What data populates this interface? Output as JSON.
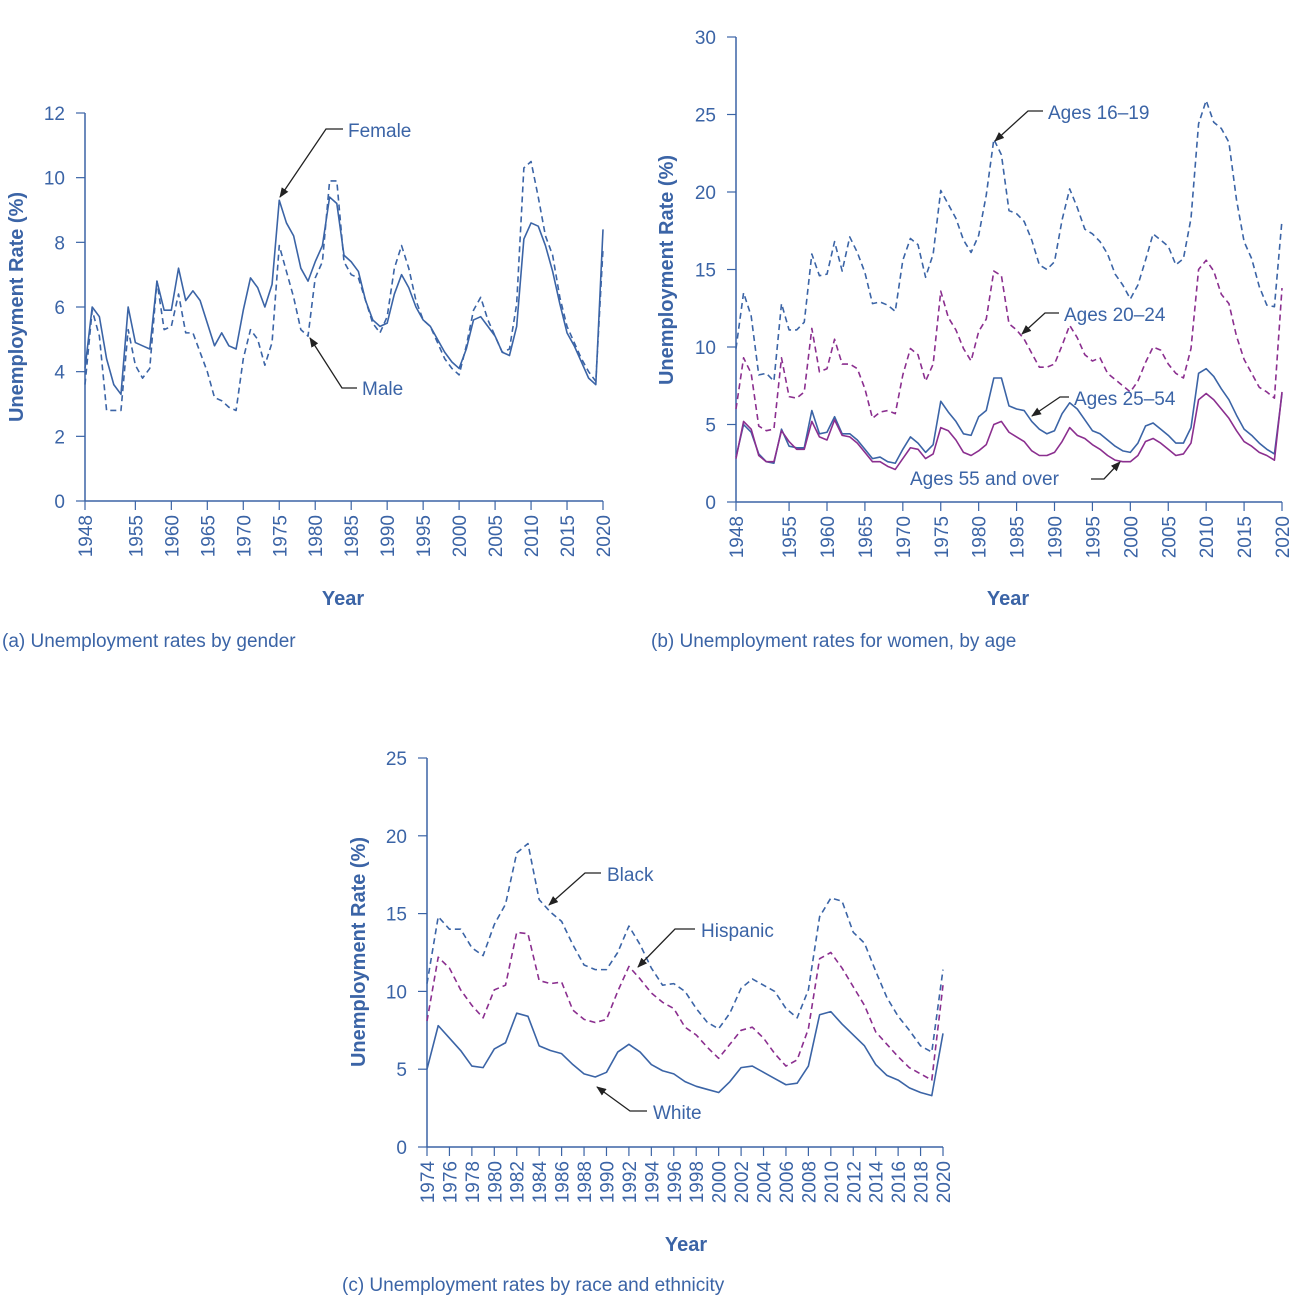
{
  "chart_data": [
    {
      "type": "line",
      "caption": "(a) Unemployment rates by gender",
      "xlabel": "Year",
      "ylabel": "Unemployment Rate (%)",
      "x": [
        1948,
        1949,
        1950,
        1951,
        1952,
        1953,
        1954,
        1955,
        1956,
        1957,
        1958,
        1959,
        1960,
        1961,
        1962,
        1963,
        1964,
        1965,
        1966,
        1967,
        1968,
        1969,
        1970,
        1971,
        1972,
        1973,
        1974,
        1975,
        1976,
        1977,
        1978,
        1979,
        1980,
        1981,
        1982,
        1983,
        1984,
        1985,
        1986,
        1987,
        1988,
        1989,
        1990,
        1991,
        1992,
        1993,
        1994,
        1995,
        1996,
        1997,
        1998,
        1999,
        2000,
        2001,
        2002,
        2003,
        2004,
        2005,
        2006,
        2007,
        2008,
        2009,
        2010,
        2011,
        2012,
        2013,
        2014,
        2015,
        2016,
        2017,
        2018,
        2019,
        2020
      ],
      "xlim": [
        1948,
        2020
      ],
      "xticks": [
        1948,
        1955,
        1960,
        1965,
        1970,
        1975,
        1980,
        1985,
        1990,
        1995,
        2000,
        2005,
        2010,
        2015,
        2020
      ],
      "ylim": [
        0,
        12
      ],
      "yticks": [
        0,
        2,
        4,
        6,
        8,
        10,
        12
      ],
      "series": [
        {
          "name": "Female",
          "color": "#3b64a6",
          "dashed": false,
          "values": [
            4.1,
            6.0,
            5.7,
            4.4,
            3.6,
            3.3,
            6.0,
            4.9,
            4.8,
            4.7,
            6.8,
            5.9,
            5.9,
            7.2,
            6.2,
            6.5,
            6.2,
            5.5,
            4.8,
            5.2,
            4.8,
            4.7,
            5.9,
            6.9,
            6.6,
            6.0,
            6.7,
            9.3,
            8.6,
            8.2,
            7.2,
            6.8,
            7.4,
            7.9,
            9.4,
            9.2,
            7.6,
            7.4,
            7.1,
            6.2,
            5.6,
            5.4,
            5.5,
            6.4,
            7.0,
            6.6,
            6.0,
            5.6,
            5.4,
            5.0,
            4.6,
            4.3,
            4.1,
            4.7,
            5.6,
            5.7,
            5.4,
            5.1,
            4.6,
            4.5,
            5.4,
            8.1,
            8.6,
            8.5,
            7.9,
            7.1,
            6.1,
            5.2,
            4.8,
            4.3,
            3.8,
            3.6,
            8.4
          ]
        },
        {
          "name": "Male",
          "color": "#3b64a6",
          "dashed": true,
          "values": [
            3.6,
            5.9,
            5.1,
            2.8,
            2.8,
            2.8,
            5.3,
            4.2,
            3.8,
            4.1,
            6.8,
            5.3,
            5.4,
            6.4,
            5.2,
            5.2,
            4.6,
            4.0,
            3.2,
            3.1,
            2.9,
            2.8,
            4.4,
            5.3,
            5.0,
            4.2,
            4.9,
            7.9,
            7.1,
            6.3,
            5.3,
            5.1,
            6.9,
            7.4,
            9.9,
            9.9,
            7.4,
            7.0,
            6.9,
            6.2,
            5.5,
            5.2,
            5.7,
            7.2,
            7.9,
            7.2,
            6.2,
            5.6,
            5.4,
            4.9,
            4.4,
            4.1,
            3.9,
            4.8,
            5.9,
            6.3,
            5.6,
            5.1,
            4.6,
            4.7,
            6.1,
            10.3,
            10.5,
            9.4,
            8.2,
            7.6,
            6.3,
            5.4,
            4.9,
            4.4,
            4.0,
            3.7,
            7.8
          ]
        }
      ]
    },
    {
      "type": "line",
      "caption": "(b) Unemployment rates for women, by age",
      "xlabel": "Year",
      "ylabel": "Unemployment Rate (%)",
      "x": [
        1948,
        1949,
        1950,
        1951,
        1952,
        1953,
        1954,
        1955,
        1956,
        1957,
        1958,
        1959,
        1960,
        1961,
        1962,
        1963,
        1964,
        1965,
        1966,
        1967,
        1968,
        1969,
        1970,
        1971,
        1972,
        1973,
        1974,
        1975,
        1976,
        1977,
        1978,
        1979,
        1980,
        1981,
        1982,
        1983,
        1984,
        1985,
        1986,
        1987,
        1988,
        1989,
        1990,
        1991,
        1992,
        1993,
        1994,
        1995,
        1996,
        1997,
        1998,
        1999,
        2000,
        2001,
        2002,
        2003,
        2004,
        2005,
        2006,
        2007,
        2008,
        2009,
        2010,
        2011,
        2012,
        2013,
        2014,
        2015,
        2016,
        2017,
        2018,
        2019,
        2020
      ],
      "xlim": [
        1948,
        2020
      ],
      "xticks": [
        1948,
        1955,
        1960,
        1965,
        1970,
        1975,
        1980,
        1985,
        1990,
        1995,
        2000,
        2005,
        2010,
        2015,
        2020
      ],
      "ylim": [
        0,
        30
      ],
      "yticks": [
        0,
        5,
        10,
        15,
        20,
        25,
        30
      ],
      "series": [
        {
          "name": "Ages 16–19",
          "color": "#3b64a6",
          "dashed": true,
          "values": [
            9.9,
            13.5,
            12.0,
            8.2,
            8.3,
            7.8,
            12.8,
            11.1,
            11.1,
            11.6,
            16.0,
            14.6,
            14.7,
            16.8,
            14.9,
            17.1,
            16.1,
            14.8,
            12.8,
            12.9,
            12.7,
            12.3,
            15.6,
            17.0,
            16.6,
            14.5,
            16.0,
            20.1,
            19.2,
            18.3,
            16.9,
            16.1,
            17.2,
            19.8,
            23.4,
            22.4,
            18.8,
            18.6,
            18.1,
            16.9,
            15.3,
            15.0,
            15.5,
            18.2,
            20.2,
            19.0,
            17.6,
            17.3,
            16.8,
            16.0,
            14.7,
            14.0,
            13.1,
            14.0,
            15.6,
            17.3,
            16.9,
            16.5,
            15.3,
            15.7,
            18.3,
            24.4,
            25.9,
            24.5,
            24.1,
            23.2,
            19.5,
            16.8,
            15.7,
            13.9,
            12.7,
            12.6,
            18.2
          ]
        },
        {
          "name": "Ages 20–24",
          "color": "#8b2f8f",
          "dashed": true,
          "values": [
            6.0,
            9.3,
            8.3,
            4.9,
            4.6,
            4.7,
            9.3,
            6.8,
            6.7,
            7.1,
            11.2,
            8.4,
            8.6,
            10.5,
            8.9,
            8.9,
            8.6,
            7.3,
            5.4,
            5.8,
            5.9,
            5.7,
            8.2,
            9.9,
            9.5,
            7.8,
            8.9,
            13.6,
            11.9,
            11.1,
            9.9,
            9.1,
            11.0,
            11.8,
            14.9,
            14.6,
            11.5,
            11.1,
            10.5,
            9.6,
            8.7,
            8.7,
            8.9,
            10.1,
            11.4,
            10.6,
            9.5,
            9.1,
            9.3,
            8.3,
            7.9,
            7.5,
            7.1,
            7.8,
            9.0,
            10.0,
            9.8,
            8.9,
            8.3,
            8.0,
            9.9,
            15.0,
            15.6,
            14.9,
            13.4,
            12.8,
            10.7,
            9.2,
            8.3,
            7.4,
            7.1,
            6.7,
            13.8
          ]
        },
        {
          "name": "Ages 25–54",
          "color": "#3b64a6",
          "dashed": false,
          "values": [
            2.9,
            5.0,
            4.5,
            3.1,
            2.6,
            2.5,
            4.7,
            3.6,
            3.5,
            3.5,
            5.9,
            4.4,
            4.5,
            5.5,
            4.4,
            4.4,
            4.0,
            3.4,
            2.8,
            2.9,
            2.6,
            2.5,
            3.4,
            4.2,
            3.8,
            3.2,
            3.7,
            6.5,
            5.8,
            5.2,
            4.4,
            4.3,
            5.5,
            5.9,
            8.0,
            8.0,
            6.2,
            6.0,
            5.9,
            5.2,
            4.7,
            4.4,
            4.6,
            5.7,
            6.4,
            6.0,
            5.3,
            4.6,
            4.4,
            4.0,
            3.6,
            3.3,
            3.2,
            3.8,
            4.9,
            5.1,
            4.7,
            4.3,
            3.8,
            3.8,
            4.8,
            8.3,
            8.6,
            8.1,
            7.3,
            6.6,
            5.6,
            4.7,
            4.3,
            3.8,
            3.4,
            3.1,
            7.0
          ]
        },
        {
          "name": "Ages 55 and over",
          "color": "#8b2f8f",
          "dashed": false,
          "values": [
            2.8,
            5.2,
            4.7,
            3.0,
            2.6,
            2.6,
            4.6,
            3.9,
            3.4,
            3.4,
            5.2,
            4.2,
            4.0,
            5.3,
            4.3,
            4.2,
            3.8,
            3.2,
            2.6,
            2.6,
            2.3,
            2.1,
            2.8,
            3.5,
            3.4,
            2.8,
            3.1,
            4.8,
            4.6,
            4.0,
            3.2,
            3.0,
            3.3,
            3.7,
            5.0,
            5.2,
            4.5,
            4.2,
            3.9,
            3.3,
            3.0,
            3.0,
            3.2,
            3.9,
            4.8,
            4.3,
            4.1,
            3.7,
            3.4,
            3.0,
            2.7,
            2.6,
            2.6,
            3.0,
            3.9,
            4.1,
            3.8,
            3.4,
            3.0,
            3.1,
            3.8,
            6.6,
            7.0,
            6.6,
            6.0,
            5.4,
            4.6,
            3.9,
            3.6,
            3.2,
            3.0,
            2.7,
            7.1
          ]
        }
      ]
    },
    {
      "type": "line",
      "caption": "(c) Unemployment rates by race and ethnicity",
      "xlabel": "Year",
      "ylabel": "Unemployment Rate (%)",
      "x": [
        1974,
        1975,
        1976,
        1977,
        1978,
        1979,
        1980,
        1981,
        1982,
        1983,
        1984,
        1985,
        1986,
        1987,
        1988,
        1989,
        1990,
        1991,
        1992,
        1993,
        1994,
        1995,
        1996,
        1997,
        1998,
        1999,
        2000,
        2001,
        2002,
        2003,
        2004,
        2005,
        2006,
        2007,
        2008,
        2009,
        2010,
        2011,
        2012,
        2013,
        2014,
        2015,
        2016,
        2017,
        2018,
        2019,
        2020
      ],
      "xlim": [
        1974,
        2020
      ],
      "xticks": [
        1974,
        1976,
        1978,
        1980,
        1982,
        1984,
        1986,
        1988,
        1990,
        1992,
        1994,
        1996,
        1998,
        2000,
        2002,
        2004,
        2006,
        2008,
        2010,
        2012,
        2014,
        2016,
        2018,
        2020
      ],
      "ylim": [
        0,
        25
      ],
      "yticks": [
        0,
        5,
        10,
        15,
        20,
        25
      ],
      "series": [
        {
          "name": "Black",
          "color": "#3b64a6",
          "dashed": true,
          "values": [
            10.5,
            14.8,
            14.0,
            14.0,
            12.8,
            12.3,
            14.3,
            15.6,
            18.9,
            19.5,
            15.9,
            15.1,
            14.5,
            13.0,
            11.7,
            11.4,
            11.4,
            12.5,
            14.2,
            13.0,
            11.5,
            10.4,
            10.5,
            10.0,
            8.9,
            8.0,
            7.6,
            8.6,
            10.2,
            10.8,
            10.4,
            10.0,
            8.9,
            8.3,
            10.1,
            14.8,
            16.0,
            15.8,
            13.8,
            13.1,
            11.3,
            9.6,
            8.4,
            7.5,
            6.5,
            6.1,
            11.4
          ]
        },
        {
          "name": "Hispanic",
          "color": "#8b2f8f",
          "dashed": true,
          "values": [
            8.1,
            12.2,
            11.5,
            10.1,
            9.1,
            8.3,
            10.1,
            10.4,
            13.8,
            13.7,
            10.7,
            10.5,
            10.6,
            8.8,
            8.2,
            8.0,
            8.2,
            10.0,
            11.6,
            10.8,
            9.9,
            9.3,
            8.9,
            7.7,
            7.2,
            6.4,
            5.7,
            6.6,
            7.5,
            7.7,
            7.0,
            6.0,
            5.2,
            5.6,
            7.6,
            12.1,
            12.5,
            11.5,
            10.3,
            9.1,
            7.4,
            6.6,
            5.8,
            5.1,
            4.7,
            4.3,
            10.4
          ]
        },
        {
          "name": "White",
          "color": "#3b64a6",
          "dashed": false,
          "values": [
            5.0,
            7.8,
            7.0,
            6.2,
            5.2,
            5.1,
            6.3,
            6.7,
            8.6,
            8.4,
            6.5,
            6.2,
            6.0,
            5.3,
            4.7,
            4.5,
            4.8,
            6.1,
            6.6,
            6.1,
            5.3,
            4.9,
            4.7,
            4.2,
            3.9,
            3.7,
            3.5,
            4.2,
            5.1,
            5.2,
            4.8,
            4.4,
            4.0,
            4.1,
            5.2,
            8.5,
            8.7,
            7.9,
            7.2,
            6.5,
            5.3,
            4.6,
            4.3,
            3.8,
            3.5,
            3.3,
            7.3
          ]
        }
      ]
    }
  ]
}
